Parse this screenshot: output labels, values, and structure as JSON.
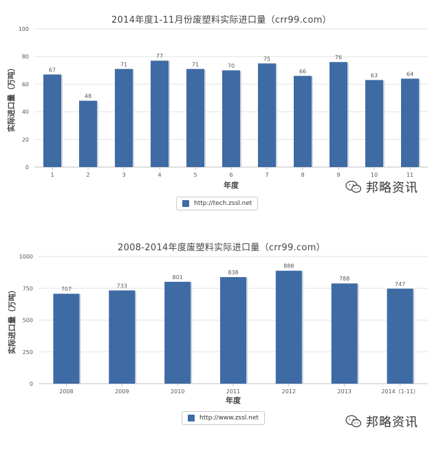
{
  "charts": [
    {
      "type": "bar",
      "title": "2014年度1-11月份废塑料实际进口量（crr99.com）",
      "xlabel": "年度",
      "ylabel": "实际进口量（万吨）",
      "legend": "http://tech.zssl.net",
      "categories": [
        "1",
        "2",
        "3",
        "4",
        "5",
        "6",
        "7",
        "8",
        "9",
        "10",
        "11"
      ],
      "values": [
        67,
        48,
        71,
        77,
        71,
        70,
        75,
        66,
        76,
        63,
        64
      ],
      "yticks": [
        0,
        20,
        40,
        60,
        80,
        100
      ],
      "ylim": [
        0,
        100
      ],
      "grid": true,
      "legend_position": "bottom-center",
      "bar_color": "#3f6ba5"
    },
    {
      "type": "bar",
      "title": "2008-2014年度废塑料实际进口量（crr99.com）",
      "xlabel": "年度",
      "ylabel": "实际进口量（万吨）",
      "legend": "http://www.zssl.net",
      "categories": [
        "2008",
        "2009",
        "2010",
        "2011",
        "2012",
        "2013",
        "2014（1-11）"
      ],
      "values": [
        707,
        733,
        801,
        838,
        888,
        788,
        747
      ],
      "yticks": [
        0,
        250,
        500,
        750,
        1000
      ],
      "ylim": [
        0,
        1000
      ],
      "grid": true,
      "legend_position": "bottom-center",
      "bar_color": "#3f6ba5"
    }
  ],
  "chart_data": [
    {
      "type": "bar",
      "title": "2014年度1-11月份废塑料实际进口量（crr99.com）",
      "xlabel": "年度",
      "ylabel": "实际进口量（万吨）",
      "categories": [
        "1",
        "2",
        "3",
        "4",
        "5",
        "6",
        "7",
        "8",
        "9",
        "10",
        "11"
      ],
      "series": [
        {
          "name": "http://tech.zssl.net",
          "values": [
            67,
            48,
            71,
            77,
            71,
            70,
            75,
            66,
            76,
            63,
            64
          ]
        }
      ],
      "ylim": [
        0,
        100
      ],
      "grid": true,
      "legend": "bottom-center"
    },
    {
      "type": "bar",
      "title": "2008-2014年度废塑料实际进口量（crr99.com）",
      "xlabel": "年度",
      "ylabel": "实际进口量（万吨）",
      "categories": [
        "2008",
        "2009",
        "2010",
        "2011",
        "2012",
        "2013",
        "2014（1-11）"
      ],
      "series": [
        {
          "name": "http://www.zssl.net",
          "values": [
            707,
            733,
            801,
            838,
            888,
            788,
            747
          ]
        }
      ],
      "ylim": [
        0,
        1000
      ],
      "grid": true,
      "legend": "bottom-center"
    }
  ],
  "watermark": {
    "text": "邦略资讯",
    "icon": "wechat-icon"
  }
}
